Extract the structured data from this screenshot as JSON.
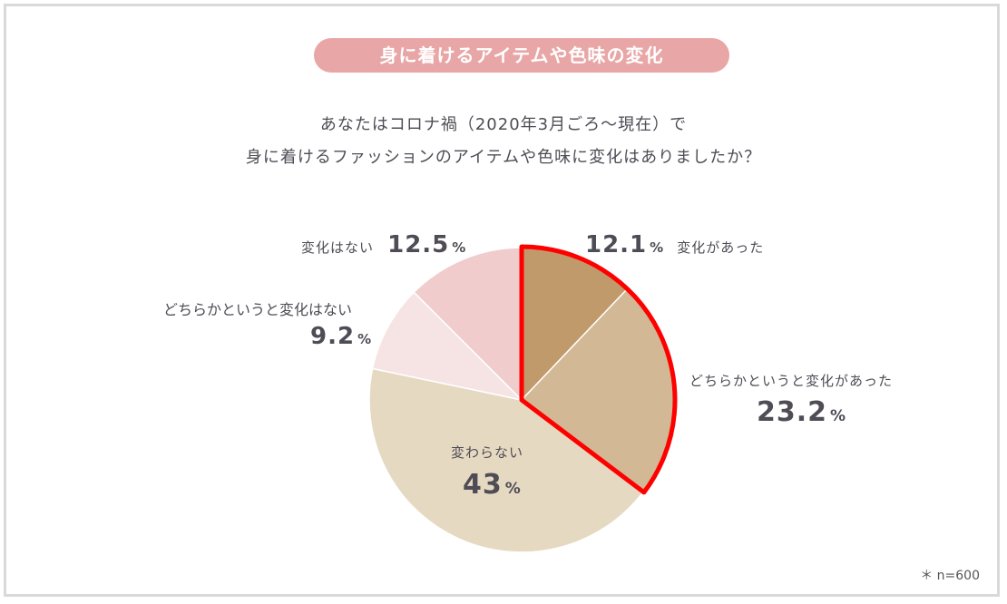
{
  "title": "身に着けるアイテムや色味の変化",
  "question_line1": "あなたはコロナ禍（2020年3月ごろ〜現在）で",
  "question_line2": "身に着けるファッションのアイテムや色味に変化はありましたか？",
  "note": "＊ n=600",
  "pct_symbol": "%",
  "chart_data": {
    "type": "pie",
    "slices": [
      {
        "label": "変化があった",
        "value": 12.1,
        "display": "12.1",
        "color": "#c19a6b"
      },
      {
        "label": "どちらかというと変化があった",
        "value": 23.2,
        "display": "23.2",
        "color": "#d2b894"
      },
      {
        "label": "変わらない",
        "value": 43,
        "display": "43",
        "color": "#e6d9c2"
      },
      {
        "label": "どちらかというと変化はない",
        "value": 9.2,
        "display": "9.2",
        "color": "#f6e4e4"
      },
      {
        "label": "変化はない",
        "value": 12.5,
        "display": "12.5",
        "color": "#f1cccc"
      }
    ],
    "highlight": {
      "slices": [
        "変化があった",
        "どちらかというと変化があった"
      ],
      "color": "#ff0000"
    }
  }
}
